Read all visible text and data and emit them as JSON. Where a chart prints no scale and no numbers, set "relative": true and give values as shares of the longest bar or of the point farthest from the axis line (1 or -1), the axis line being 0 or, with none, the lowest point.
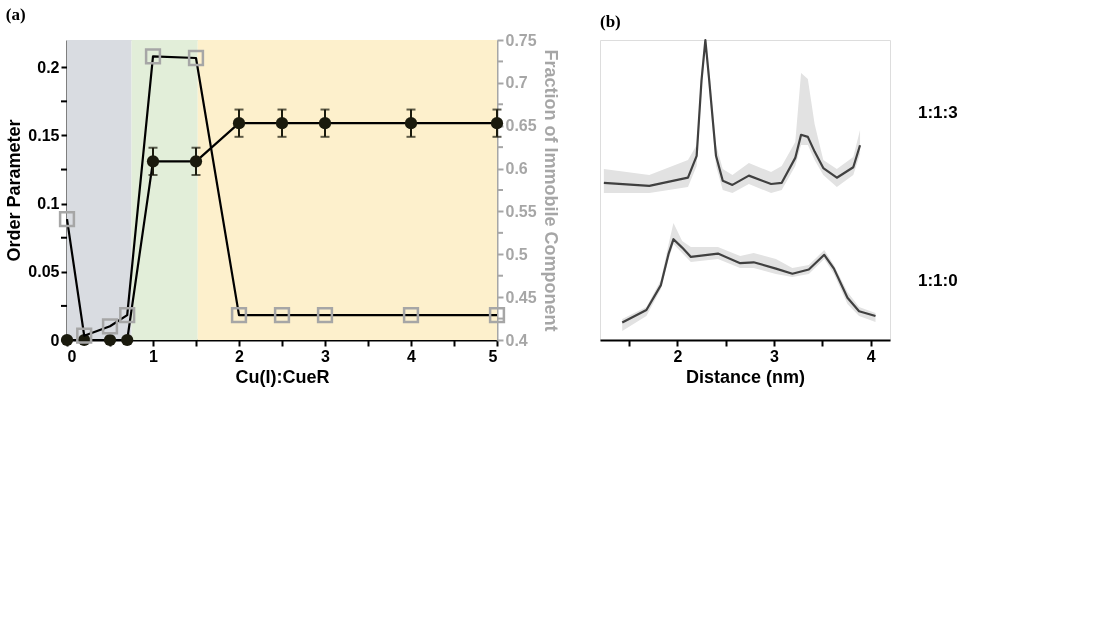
{
  "chart_data": [
    {
      "type": "line",
      "title": "(a)",
      "xlabel": "Cu(I):CueR",
      "ylabel": "Order Parameter",
      "y2label": "Fraction of Immobile Component",
      "x": [
        0,
        0.2,
        0.5,
        0.7,
        1,
        1.5,
        2,
        2.5,
        3,
        4,
        5
      ],
      "series": [
        {
          "color": "#1a1a0d",
          "marker": "circle",
          "values": [
            0,
            0,
            0,
            0,
            0.131,
            0.131,
            0.159,
            0.159,
            0.159,
            0.159,
            0.159
          ],
          "errors": [
            null,
            null,
            null,
            null,
            0.01,
            0.01,
            0.01,
            0.01,
            0.01,
            0.01,
            0.01
          ]
        },
        {
          "color": "#a6a6a6",
          "marker": "square",
          "axis": "y2",
          "values": [
            0.541,
            0.405,
            0.416,
            0.429,
            0.731,
            0.729,
            0.429,
            0.429,
            0.429,
            0.429,
            0.429
          ]
        }
      ],
      "xlim": [
        0,
        5
      ],
      "xticks": [
        0,
        {
          "value": 0.5,
          "label": null
        },
        1,
        {
          "value": 1.5,
          "label": null
        },
        2,
        {
          "value": 2.5,
          "label": null
        },
        3,
        {
          "value": 3.5,
          "label": null
        },
        4,
        {
          "value": 4.5,
          "label": null
        },
        5
      ],
      "ylim": [
        0,
        0.22
      ],
      "yticks": [
        0,
        {
          "value": 0.025,
          "label": null
        },
        0.05,
        {
          "value": 0.075,
          "label": null
        },
        0.1,
        {
          "value": 0.125,
          "label": null
        },
        0.15,
        {
          "value": 0.175,
          "label": null
        },
        0.2
      ],
      "y2lim": [
        0.4,
        0.75
      ],
      "y2ticks": [
        0.4,
        {
          "value": 0.425,
          "label": null
        },
        0.45,
        {
          "value": 0.475,
          "label": null
        },
        0.5,
        {
          "value": 0.525,
          "label": null
        },
        0.55,
        {
          "value": 0.575,
          "label": null
        },
        0.6,
        {
          "value": 0.625,
          "label": null
        },
        0.65,
        {
          "value": 0.675,
          "label": null
        },
        0.7,
        {
          "value": 0.725,
          "label": null
        },
        0.75
      ],
      "bands": [
        {
          "axis": "x",
          "from": 0,
          "to": 0.75,
          "color": "#d9dce1"
        },
        {
          "axis": "x",
          "from": 0.75,
          "to": 1.52,
          "color": "#e2eed9"
        },
        {
          "axis": "x",
          "from": 1.52,
          "to": 5,
          "color": "#fdf0cc"
        }
      ]
    },
    {
      "type": "line",
      "title": "(b)",
      "xlabel": "Distance (nm)",
      "relative": true,
      "tick_labels": "x",
      "xlim": [
        1.2,
        4.2
      ],
      "xticks": [
        {
          "value": 1.5,
          "label": null
        },
        2,
        {
          "value": 2.5,
          "label": null
        },
        3,
        {
          "value": 3.5,
          "label": null
        },
        4
      ],
      "series": [
        {
          "name": "1:1:3",
          "color": "#404040",
          "x": [
            1.24,
            1.71,
            2.11,
            2.2,
            2.25,
            2.29,
            2.33,
            2.4,
            2.47,
            2.57,
            2.74,
            2.97,
            3.08,
            3.22,
            3.28,
            3.35,
            3.42,
            3.51,
            3.65,
            3.82,
            3.89
          ],
          "values": [
            0.524,
            0.514,
            0.541,
            0.614,
            0.865,
            1.0,
            0.865,
            0.614,
            0.531,
            0.517,
            0.548,
            0.52,
            0.524,
            0.607,
            0.684,
            0.677,
            0.628,
            0.573,
            0.541,
            0.576,
            0.649
          ],
          "lower": [
            0.49,
            0.49,
            0.51,
            0.58,
            0.83,
            0.97,
            0.83,
            0.58,
            0.5,
            0.49,
            0.52,
            0.49,
            0.5,
            0.58,
            0.65,
            0.65,
            0.6,
            0.55,
            0.51,
            0.55,
            0.62
          ],
          "upper": [
            0.57,
            0.55,
            0.6,
            0.65,
            0.9,
            1.0,
            0.9,
            0.65,
            0.57,
            0.55,
            0.59,
            0.56,
            0.58,
            0.66,
            0.89,
            0.87,
            0.72,
            0.6,
            0.57,
            0.61,
            0.7
          ]
        },
        {
          "name": "1:1:0",
          "color": "#404040",
          "x": [
            1.43,
            1.68,
            1.83,
            1.91,
            1.96,
            2.05,
            2.14,
            2.42,
            2.65,
            2.79,
            3.02,
            3.19,
            3.36,
            3.52,
            3.62,
            3.76,
            3.88,
            4.05
          ],
          "values": [
            0.058,
            0.1,
            0.183,
            0.288,
            0.336,
            0.308,
            0.277,
            0.288,
            0.256,
            0.259,
            0.238,
            0.221,
            0.235,
            0.284,
            0.238,
            0.141,
            0.096,
            0.08
          ],
          "lower": [
            0.03,
            0.08,
            0.17,
            0.27,
            0.32,
            0.29,
            0.26,
            0.27,
            0.24,
            0.24,
            0.22,
            0.21,
            0.22,
            0.27,
            0.22,
            0.12,
            0.08,
            0.06
          ],
          "upper": [
            0.07,
            0.11,
            0.2,
            0.32,
            0.39,
            0.33,
            0.31,
            0.31,
            0.28,
            0.29,
            0.27,
            0.24,
            0.25,
            0.3,
            0.25,
            0.16,
            0.11,
            0.09
          ]
        }
      ]
    }
  ]
}
